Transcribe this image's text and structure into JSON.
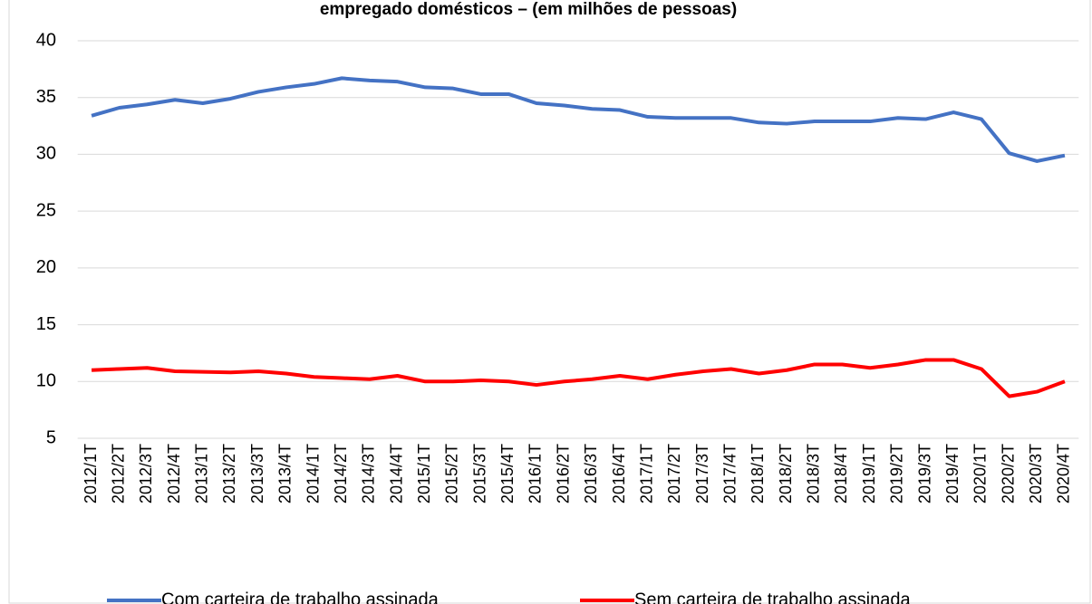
{
  "chart_data": {
    "type": "line",
    "title": "empregado domésticos – (em milhões de pessoas)",
    "categories": [
      "2012/1T",
      "2012/2T",
      "2012/3T",
      "2012/4T",
      "2013/1T",
      "2013/2T",
      "2013/3T",
      "2013/4T",
      "2014/1T",
      "2014/2T",
      "2014/3T",
      "2014/4T",
      "2015/1T",
      "2015/2T",
      "2015/3T",
      "2015/4T",
      "2016/1T",
      "2016/2T",
      "2016/3T",
      "2016/4T",
      "2017/1T",
      "2017/2T",
      "2017/3T",
      "2017/4T",
      "2018/1T",
      "2018/2T",
      "2018/3T",
      "2018/4T",
      "2019/1T",
      "2019/2T",
      "2019/3T",
      "2019/4T",
      "2020/1T",
      "2020/2T",
      "2020/3T",
      "2020/4T"
    ],
    "series": [
      {
        "name": "Com carteira de trabalho assinada",
        "color": "#4472c4",
        "values": [
          33.4,
          34.1,
          34.4,
          34.8,
          34.5,
          34.9,
          35.5,
          35.9,
          36.2,
          36.7,
          36.5,
          36.4,
          35.9,
          35.8,
          35.3,
          35.3,
          34.5,
          34.3,
          34.0,
          33.9,
          33.3,
          33.2,
          33.2,
          33.2,
          32.8,
          32.7,
          32.9,
          32.9,
          32.9,
          33.2,
          33.1,
          33.7,
          33.1,
          30.1,
          29.4,
          29.9
        ]
      },
      {
        "name": "Sem carteira de trabalho assinada",
        "color": "#ff0000",
        "values": [
          11.0,
          11.1,
          11.2,
          10.9,
          10.85,
          10.8,
          10.9,
          10.7,
          10.4,
          10.3,
          10.2,
          10.5,
          10.0,
          10.0,
          10.1,
          10.0,
          9.7,
          10.0,
          10.2,
          10.5,
          10.2,
          10.6,
          10.9,
          11.1,
          10.7,
          11.0,
          11.5,
          11.5,
          11.2,
          11.5,
          11.9,
          11.9,
          11.1,
          8.7,
          9.1,
          10.0
        ]
      }
    ],
    "ylim": [
      5,
      40
    ],
    "yticks": [
      5,
      10,
      15,
      20,
      25,
      30,
      35,
      40
    ],
    "grid": true,
    "legend": "bottom"
  }
}
